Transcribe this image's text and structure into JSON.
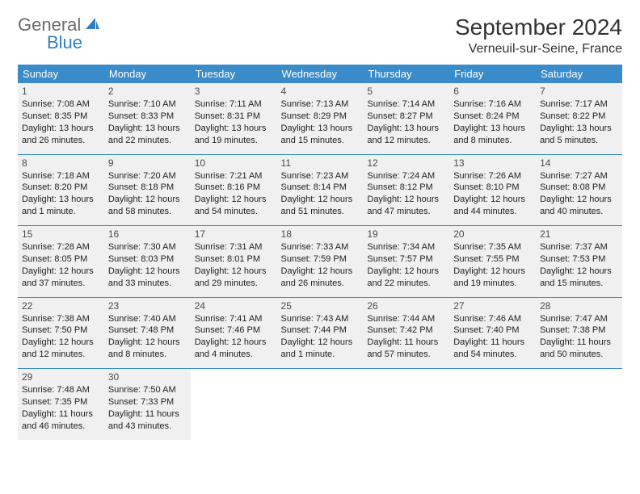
{
  "logo": {
    "general": "General",
    "blue": "Blue"
  },
  "title": "September 2024",
  "location": "Verneuil-sur-Seine, France",
  "colors": {
    "header_bg": "#3a8bc9",
    "header_text": "#ffffff",
    "cell_bg": "#f0f0f0",
    "sep": "#3a8bc9",
    "logo_general": "#6b6b6b",
    "logo_blue": "#2f7fc2"
  },
  "weekdays": [
    "Sunday",
    "Monday",
    "Tuesday",
    "Wednesday",
    "Thursday",
    "Friday",
    "Saturday"
  ],
  "days": [
    {
      "n": 1,
      "sr": "7:08 AM",
      "ss": "8:35 PM",
      "dl": "13 hours and 26 minutes."
    },
    {
      "n": 2,
      "sr": "7:10 AM",
      "ss": "8:33 PM",
      "dl": "13 hours and 22 minutes."
    },
    {
      "n": 3,
      "sr": "7:11 AM",
      "ss": "8:31 PM",
      "dl": "13 hours and 19 minutes."
    },
    {
      "n": 4,
      "sr": "7:13 AM",
      "ss": "8:29 PM",
      "dl": "13 hours and 15 minutes."
    },
    {
      "n": 5,
      "sr": "7:14 AM",
      "ss": "8:27 PM",
      "dl": "13 hours and 12 minutes."
    },
    {
      "n": 6,
      "sr": "7:16 AM",
      "ss": "8:24 PM",
      "dl": "13 hours and 8 minutes."
    },
    {
      "n": 7,
      "sr": "7:17 AM",
      "ss": "8:22 PM",
      "dl": "13 hours and 5 minutes."
    },
    {
      "n": 8,
      "sr": "7:18 AM",
      "ss": "8:20 PM",
      "dl": "13 hours and 1 minute."
    },
    {
      "n": 9,
      "sr": "7:20 AM",
      "ss": "8:18 PM",
      "dl": "12 hours and 58 minutes."
    },
    {
      "n": 10,
      "sr": "7:21 AM",
      "ss": "8:16 PM",
      "dl": "12 hours and 54 minutes."
    },
    {
      "n": 11,
      "sr": "7:23 AM",
      "ss": "8:14 PM",
      "dl": "12 hours and 51 minutes."
    },
    {
      "n": 12,
      "sr": "7:24 AM",
      "ss": "8:12 PM",
      "dl": "12 hours and 47 minutes."
    },
    {
      "n": 13,
      "sr": "7:26 AM",
      "ss": "8:10 PM",
      "dl": "12 hours and 44 minutes."
    },
    {
      "n": 14,
      "sr": "7:27 AM",
      "ss": "8:08 PM",
      "dl": "12 hours and 40 minutes."
    },
    {
      "n": 15,
      "sr": "7:28 AM",
      "ss": "8:05 PM",
      "dl": "12 hours and 37 minutes."
    },
    {
      "n": 16,
      "sr": "7:30 AM",
      "ss": "8:03 PM",
      "dl": "12 hours and 33 minutes."
    },
    {
      "n": 17,
      "sr": "7:31 AM",
      "ss": "8:01 PM",
      "dl": "12 hours and 29 minutes."
    },
    {
      "n": 18,
      "sr": "7:33 AM",
      "ss": "7:59 PM",
      "dl": "12 hours and 26 minutes."
    },
    {
      "n": 19,
      "sr": "7:34 AM",
      "ss": "7:57 PM",
      "dl": "12 hours and 22 minutes."
    },
    {
      "n": 20,
      "sr": "7:35 AM",
      "ss": "7:55 PM",
      "dl": "12 hours and 19 minutes."
    },
    {
      "n": 21,
      "sr": "7:37 AM",
      "ss": "7:53 PM",
      "dl": "12 hours and 15 minutes."
    },
    {
      "n": 22,
      "sr": "7:38 AM",
      "ss": "7:50 PM",
      "dl": "12 hours and 12 minutes."
    },
    {
      "n": 23,
      "sr": "7:40 AM",
      "ss": "7:48 PM",
      "dl": "12 hours and 8 minutes."
    },
    {
      "n": 24,
      "sr": "7:41 AM",
      "ss": "7:46 PM",
      "dl": "12 hours and 4 minutes."
    },
    {
      "n": 25,
      "sr": "7:43 AM",
      "ss": "7:44 PM",
      "dl": "12 hours and 1 minute."
    },
    {
      "n": 26,
      "sr": "7:44 AM",
      "ss": "7:42 PM",
      "dl": "11 hours and 57 minutes."
    },
    {
      "n": 27,
      "sr": "7:46 AM",
      "ss": "7:40 PM",
      "dl": "11 hours and 54 minutes."
    },
    {
      "n": 28,
      "sr": "7:47 AM",
      "ss": "7:38 PM",
      "dl": "11 hours and 50 minutes."
    },
    {
      "n": 29,
      "sr": "7:48 AM",
      "ss": "7:35 PM",
      "dl": "11 hours and 46 minutes."
    },
    {
      "n": 30,
      "sr": "7:50 AM",
      "ss": "7:33 PM",
      "dl": "11 hours and 43 minutes."
    }
  ],
  "labels": {
    "sunrise": "Sunrise:",
    "sunset": "Sunset:",
    "daylight": "Daylight:"
  }
}
